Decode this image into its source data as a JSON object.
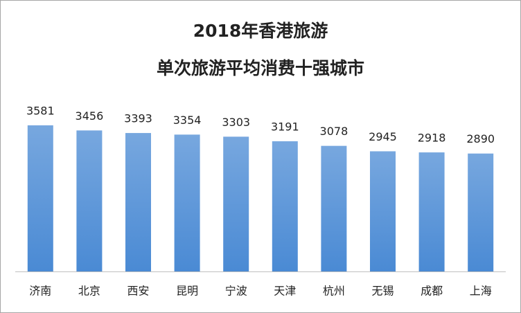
{
  "chart_data": {
    "type": "bar",
    "title": [
      "2018年香港旅游",
      "单次旅游平均消费十强城市"
    ],
    "categories": [
      "济南",
      "北京",
      "西安",
      "昆明",
      "宁波",
      "天津",
      "杭州",
      "无锡",
      "成都",
      "上海"
    ],
    "values": [
      3581,
      3456,
      3393,
      3354,
      3303,
      3191,
      3078,
      2945,
      2918,
      2890
    ],
    "color": "#4a8ad4"
  }
}
